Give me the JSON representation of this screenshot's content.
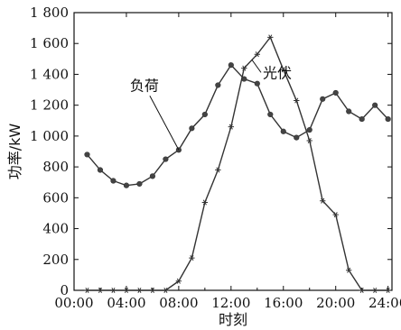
{
  "chart_data": {
    "type": "line",
    "xlabel": "时刻",
    "ylabel": "功率/kW",
    "xlim": [
      0,
      24.3
    ],
    "ylim": [
      0,
      1800
    ],
    "x_ticks": [
      0,
      4,
      8,
      12,
      16,
      20,
      24
    ],
    "x_tick_labels": [
      "00:00",
      "04:00",
      "08:00",
      "12:00",
      "16:00",
      "20:00",
      "24:00"
    ],
    "y_ticks": [
      0,
      200,
      400,
      600,
      800,
      1000,
      1200,
      1400,
      1600,
      1800
    ],
    "y_tick_labels": [
      "0",
      "200",
      "400",
      "600",
      "800",
      "1 000",
      "1 200",
      "1 400",
      "1 600",
      "1 800"
    ],
    "grid": false,
    "series": [
      {
        "name": "负荷",
        "marker": "circle",
        "x": [
          1,
          2,
          3,
          4,
          5,
          6,
          7,
          8,
          9,
          10,
          11,
          12,
          13,
          14,
          15,
          16,
          17,
          18,
          19,
          20,
          21,
          22,
          23,
          24
        ],
        "y": [
          880,
          780,
          710,
          680,
          690,
          740,
          850,
          910,
          1050,
          1140,
          1330,
          1460,
          1370,
          1340,
          1140,
          1030,
          990,
          1040,
          1240,
          1280,
          1160,
          1110,
          1200,
          1110
        ]
      },
      {
        "name": "光伏",
        "marker": "star",
        "x": [
          1,
          2,
          3,
          4,
          5,
          6,
          7,
          8,
          9,
          10,
          11,
          12,
          13,
          14,
          15,
          16,
          17,
          18,
          19,
          20,
          21,
          22,
          23,
          24
        ],
        "y": [
          0,
          0,
          0,
          0,
          0,
          0,
          0,
          60,
          210,
          570,
          780,
          1060,
          1440,
          1530,
          1640,
          1430,
          1230,
          970,
          580,
          490,
          130,
          0,
          0,
          0
        ]
      }
    ],
    "annotations": [
      {
        "text": "负荷",
        "series": 0,
        "at_x": 8
      },
      {
        "text": "光伏",
        "series": 1,
        "at_x": 13.6
      }
    ]
  }
}
